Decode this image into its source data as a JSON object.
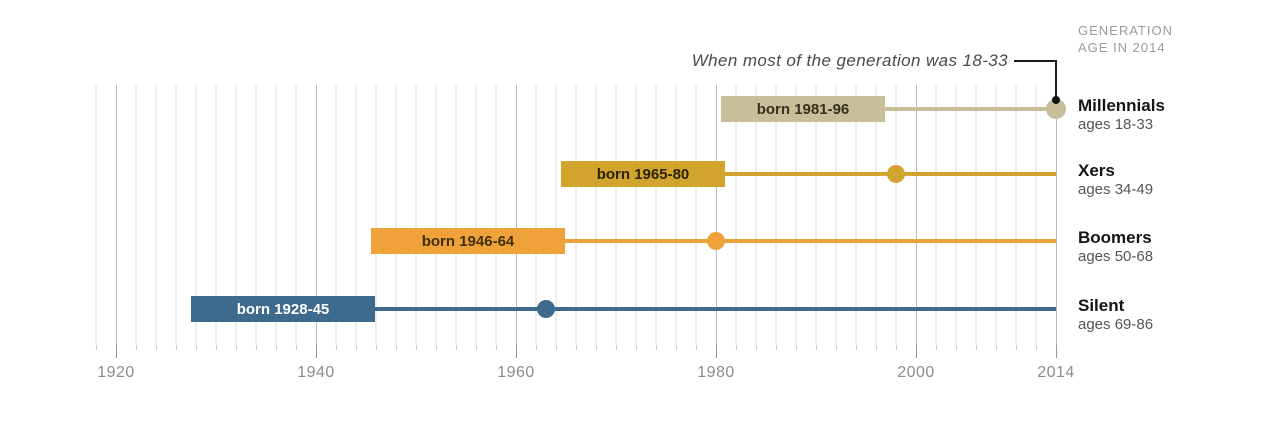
{
  "annotation": {
    "text": "When most of the generation was 18-33"
  },
  "legend_header": {
    "line1": "GENERATION",
    "line2": "AGE IN 2014"
  },
  "chart_data": {
    "type": "timeline",
    "title": "",
    "x_axis": {
      "tick_years": [
        1920,
        1940,
        1960,
        1980,
        2000,
        2014
      ],
      "tick_labels": [
        "1920",
        "1940",
        "1960",
        "1980",
        "2000",
        "2014"
      ],
      "range": [
        1918,
        2014
      ],
      "gridline_step_years": 2,
      "grid": true
    },
    "annotation": "When most of the generation was 18-33",
    "annotation_target": {
      "series": "Millennials",
      "year": 2014
    },
    "series": [
      {
        "name": "Millennials",
        "ages_label": "ages 18-33",
        "born_label": "born 1981-96",
        "birth_start": 1981,
        "birth_end": 1996,
        "marker_year": 2014,
        "color": "#c8be99",
        "born_text_color": "#35311f"
      },
      {
        "name": "Xers",
        "ages_label": "ages 34-49",
        "born_label": "born 1965-80",
        "birth_start": 1965,
        "birth_end": 1980,
        "marker_year": 1998,
        "color": "#d1a52d",
        "born_text_color": "#2b2207"
      },
      {
        "name": "Boomers",
        "ages_label": "ages 50-68",
        "born_label": "born 1946-64",
        "birth_start": 1946,
        "birth_end": 1964,
        "marker_year": 1980,
        "color": "#f0a23a",
        "born_text_color": "#403008"
      },
      {
        "name": "Silent",
        "ages_label": "ages 69-86",
        "born_label": "born 1928-45",
        "birth_start": 1928,
        "birth_end": 1945,
        "marker_year": 1963,
        "color": "#3d6a8d",
        "born_text_color": "#ffffff"
      }
    ]
  },
  "colors": {
    "gridline_minor": "#eeeeee",
    "gridline_major": "#b9b9b9",
    "tick_minor": "#c9c9c9",
    "tick_major": "#999999",
    "axis_text": "#8c8c8c",
    "annotation_text": "#4a4a4a",
    "callout": "#1a1a1a",
    "generation_name_text": "#151515",
    "ages_text": "#555555",
    "legend_header_text": "#9b9b9b"
  }
}
